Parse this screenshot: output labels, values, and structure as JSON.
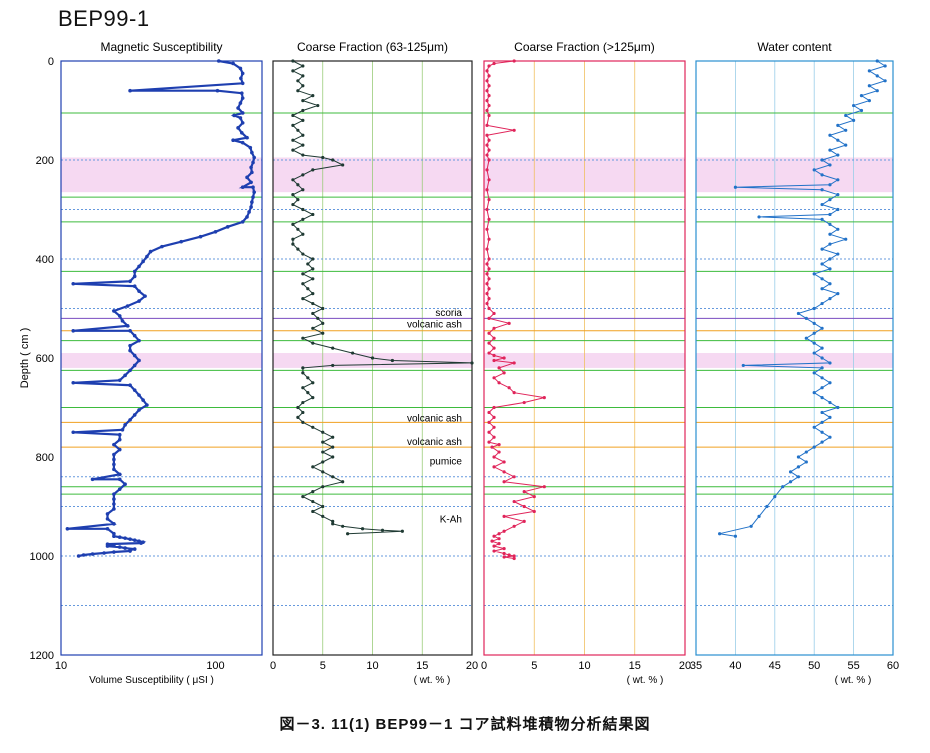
{
  "figure": {
    "title": "BEP99-1",
    "caption": "図－3. 11(1) BEP99－1 コア試料堆積物分析結果図",
    "depth_label": "Depth ( cm )"
  },
  "colors": {
    "magnetic": "#1e3fb0",
    "coarse_63": "#1f3a33",
    "coarse_125": "#e0245a",
    "water": "#2272c8",
    "frame_magnetic": "#1e3fb0",
    "frame_coarse_63": "#222222",
    "frame_coarse_125": "#e0245a",
    "frame_water": "#2a8fd0",
    "line_green": "#3dbb3d",
    "line_orange": "#f0a020",
    "line_blue_dotted": "#6699dd",
    "line_purple": "#7a4cc0",
    "band_pink": "#f6d9f2"
  },
  "chart_data": [
    {
      "type": "line",
      "title": "Magnetic Susceptibility",
      "xlabel": "Volume Susceptibility ( μSI )",
      "xscale": "log",
      "xlim": [
        10,
        200
      ],
      "xticks": [
        10,
        100
      ],
      "ylim": [
        1200,
        0
      ],
      "yticks": [
        0,
        200,
        400,
        600,
        800,
        1000,
        1200
      ],
      "series": [
        {
          "x": [
            105,
            130,
            145,
            150,
            146,
            150,
            103,
            148,
            150,
            145,
            140,
            150,
            145,
            150,
            140,
            148,
            160,
            150,
            168,
            172,
            178,
            175,
            170,
            172,
            160,
            170,
            175,
            178,
            175,
            172,
            170,
            165,
            160,
            150,
            120,
            100,
            80,
            60,
            45,
            38,
            36,
            34,
            32,
            30,
            30,
            28,
            30,
            32,
            35,
            32,
            27,
            22,
            24,
            25,
            27,
            28,
            30,
            32,
            28,
            28,
            30,
            32,
            30,
            28,
            26,
            24,
            28,
            30,
            32,
            34,
            36,
            32,
            30,
            28,
            26,
            25,
            24,
            24,
            22,
            24,
            22,
            22,
            22,
            22,
            24,
            24,
            26,
            24,
            22,
            22,
            22,
            22,
            20,
            20,
            22,
            20,
            22,
            22,
            24,
            26,
            28,
            30,
            32,
            34,
            33,
            20,
            22,
            20,
            24,
            26,
            30,
            28,
            28,
            22,
            19,
            16,
            14,
            13
          ],
          "y": [
            0,
            5,
            15,
            25,
            35,
            45,
            60,
            65,
            75,
            85,
            95,
            105,
            115,
            125,
            135,
            145,
            155,
            165,
            175,
            185,
            195,
            205,
            215,
            225,
            235,
            245,
            255,
            265,
            275,
            285,
            295,
            305,
            315,
            325,
            335,
            345,
            355,
            365,
            375,
            385,
            395,
            405,
            415,
            425,
            435,
            445,
            455,
            465,
            475,
            485,
            495,
            505,
            515,
            525,
            535,
            545,
            555,
            565,
            575,
            585,
            595,
            605,
            615,
            625,
            635,
            645,
            655,
            665,
            675,
            685,
            695,
            705,
            715,
            725,
            735,
            745,
            755,
            765,
            775,
            785,
            795,
            805,
            815,
            825,
            835,
            845,
            855,
            865,
            875,
            885,
            895,
            905,
            915,
            925,
            935,
            945,
            955,
            960,
            962,
            964,
            966,
            968,
            970,
            972,
            974,
            976,
            978,
            980,
            982,
            984,
            986,
            988,
            990,
            992,
            994,
            996,
            998,
            1000
          ]
        }
      ],
      "spikes": [
        {
          "y": 60,
          "x": 28
        },
        {
          "y": 110,
          "x": 132
        },
        {
          "y": 160,
          "x": 130
        },
        {
          "y": 255,
          "x": 150
        },
        {
          "y": 450,
          "x": 12
        },
        {
          "y": 545,
          "x": 12
        },
        {
          "y": 650,
          "x": 12
        },
        {
          "y": 750,
          "x": 12
        },
        {
          "y": 845,
          "x": 16
        },
        {
          "y": 945,
          "x": 11
        }
      ]
    },
    {
      "type": "line",
      "title": "Coarse Fraction (63-125μm)",
      "xlabel": "( wt. % )",
      "xlim": [
        0,
        20
      ],
      "xticks": [
        0,
        5,
        10,
        15,
        20
      ],
      "ylim": [
        1200,
        0
      ],
      "series": [
        {
          "x": [
            2,
            3,
            2,
            3,
            2.5,
            3,
            2.5,
            4,
            3,
            4.5,
            3,
            2,
            3,
            2,
            2.5,
            3,
            2,
            3,
            2,
            3,
            5,
            6,
            7,
            4,
            3,
            2,
            2.5,
            3,
            2,
            2.5,
            2,
            3,
            4,
            3,
            2,
            2.5,
            3,
            2,
            2,
            2.5,
            3,
            4,
            3.5,
            4,
            3,
            4,
            3,
            3.5,
            4,
            3,
            4,
            5,
            4,
            4.5,
            5,
            4,
            5,
            3,
            4,
            6,
            8,
            10,
            12,
            20,
            6,
            3,
            3,
            3.5,
            4,
            3,
            3.5,
            4,
            3,
            2.5,
            3,
            2.5,
            3,
            4,
            5,
            6,
            5,
            6,
            5,
            6,
            5,
            4,
            5,
            6,
            7,
            5,
            4,
            3,
            4,
            5,
            4,
            5,
            6,
            6,
            7,
            9,
            11,
            13,
            7.5
          ],
          "y": [
            0,
            10,
            20,
            30,
            40,
            50,
            60,
            70,
            80,
            90,
            100,
            110,
            120,
            130,
            140,
            150,
            160,
            170,
            180,
            190,
            195,
            200,
            210,
            220,
            230,
            240,
            250,
            260,
            270,
            280,
            290,
            300,
            310,
            320,
            330,
            340,
            350,
            360,
            370,
            380,
            390,
            400,
            410,
            420,
            430,
            440,
            450,
            460,
            470,
            480,
            490,
            500,
            510,
            520,
            530,
            540,
            550,
            560,
            570,
            580,
            590,
            600,
            605,
            610,
            615,
            620,
            630,
            640,
            650,
            660,
            670,
            680,
            690,
            700,
            710,
            720,
            730,
            740,
            750,
            760,
            770,
            780,
            790,
            800,
            810,
            820,
            830,
            840,
            850,
            860,
            870,
            880,
            890,
            900,
            910,
            920,
            930,
            935,
            940,
            945,
            948,
            950,
            955
          ]
        }
      ]
    },
    {
      "type": "line",
      "title": "Coarse Fraction (>125μm)",
      "xlabel": "( wt. % )",
      "xlim": [
        0,
        20
      ],
      "xticks": [
        0,
        5,
        10,
        15,
        20
      ],
      "ylim": [
        1200,
        0
      ],
      "series": [
        {
          "x": [
            3,
            1,
            0.5,
            0.3,
            0.5,
            0.3,
            0.5,
            0.3,
            0.5,
            0.3,
            0.5,
            0.3,
            0.5,
            0.3,
            3,
            0.3,
            0.5,
            0.3,
            0.5,
            0.3,
            0.5,
            0.3,
            0.5,
            0.3,
            0.5,
            0.3,
            0.5,
            0.3,
            0.5,
            0.3,
            0.5,
            0.3,
            0.5,
            0.3,
            0.5,
            0.3,
            0.5,
            0.3,
            0.5,
            0.3,
            0.5,
            1,
            0.5,
            2.5,
            1,
            0.5,
            1,
            0.5,
            1,
            0.5,
            1,
            2,
            1,
            3,
            1.5,
            2,
            1,
            1.5,
            2.5,
            3,
            6,
            4,
            1,
            0.5,
            1,
            0.5,
            1,
            0.5,
            1,
            0.5,
            1.5,
            0.8,
            1.5,
            1,
            2,
            1,
            2,
            3,
            2,
            6,
            4,
            5,
            3,
            4,
            5,
            2,
            4,
            3,
            2,
            1.5,
            1,
            1.5,
            0.8,
            1.5,
            1,
            2,
            1,
            2,
            2.5,
            3,
            2,
            3
          ],
          "y": [
            0,
            5,
            10,
            20,
            30,
            40,
            50,
            60,
            70,
            80,
            90,
            100,
            110,
            130,
            140,
            150,
            160,
            170,
            180,
            190,
            200,
            220,
            240,
            260,
            280,
            300,
            320,
            340,
            360,
            380,
            400,
            410,
            420,
            430,
            440,
            450,
            460,
            470,
            480,
            490,
            500,
            510,
            520,
            530,
            540,
            550,
            560,
            570,
            580,
            590,
            595,
            600,
            605,
            610,
            620,
            630,
            640,
            650,
            660,
            670,
            680,
            690,
            700,
            710,
            720,
            730,
            740,
            750,
            760,
            770,
            775,
            780,
            790,
            800,
            810,
            820,
            830,
            840,
            850,
            860,
            870,
            880,
            890,
            900,
            910,
            920,
            930,
            940,
            950,
            955,
            960,
            965,
            970,
            975,
            980,
            985,
            990,
            995,
            998,
            1000,
            1002,
            1005
          ]
        }
      ]
    },
    {
      "type": "line",
      "title": "Water content",
      "xlabel": "( wt. % )",
      "xlim": [
        35,
        60
      ],
      "xticks": [
        35,
        40,
        45,
        50,
        55,
        60
      ],
      "ylim": [
        1200,
        0
      ],
      "series": [
        {
          "x": [
            58,
            59,
            57,
            58,
            59,
            57,
            58,
            56,
            57,
            55,
            56,
            54,
            55,
            53,
            54,
            52,
            53,
            54,
            52,
            53,
            51,
            52,
            50,
            51,
            53,
            52,
            51,
            53,
            52,
            51,
            53,
            52,
            51,
            52,
            53,
            52,
            54,
            52,
            51,
            53,
            52,
            51,
            52,
            50,
            51,
            52,
            51,
            53,
            52,
            51,
            50,
            48,
            49,
            50,
            51,
            50,
            49,
            50,
            51,
            50,
            51,
            52,
            51,
            50,
            51,
            52,
            51,
            50,
            51,
            52,
            53,
            51,
            52,
            51,
            50,
            51,
            52,
            51,
            50,
            49,
            48,
            49,
            48,
            47,
            48,
            47,
            46,
            45,
            44,
            43,
            42,
            40
          ],
          "y": [
            0,
            10,
            20,
            30,
            40,
            50,
            60,
            70,
            80,
            90,
            100,
            110,
            120,
            130,
            140,
            150,
            160,
            170,
            180,
            190,
            200,
            210,
            220,
            230,
            240,
            250,
            260,
            270,
            280,
            290,
            300,
            310,
            320,
            330,
            340,
            350,
            360,
            370,
            380,
            390,
            400,
            410,
            420,
            430,
            440,
            450,
            460,
            470,
            480,
            490,
            500,
            510,
            520,
            530,
            540,
            550,
            560,
            570,
            580,
            590,
            600,
            610,
            620,
            630,
            640,
            650,
            660,
            670,
            680,
            690,
            700,
            710,
            720,
            730,
            740,
            750,
            760,
            770,
            780,
            790,
            800,
            810,
            820,
            830,
            840,
            850,
            860,
            880,
            900,
            920,
            940,
            960
          ]
        }
      ],
      "spikes": [
        {
          "y": 255,
          "x": 40
        },
        {
          "y": 315,
          "x": 43
        },
        {
          "y": 615,
          "x": 41
        },
        {
          "y": 955,
          "x": 38
        }
      ]
    }
  ],
  "horizons": [
    {
      "depth": 105,
      "kind": "green"
    },
    {
      "depth": 200,
      "kind": "blue_dotted"
    },
    {
      "depth": 275,
      "kind": "green"
    },
    {
      "depth": 300,
      "kind": "blue_dotted"
    },
    {
      "depth": 325,
      "kind": "green"
    },
    {
      "depth": 400,
      "kind": "blue_dotted"
    },
    {
      "depth": 425,
      "kind": "green"
    },
    {
      "depth": 500,
      "kind": "blue_dotted"
    },
    {
      "depth": 520,
      "kind": "purple"
    },
    {
      "depth": 545,
      "kind": "orange"
    },
    {
      "depth": 565,
      "kind": "green"
    },
    {
      "depth": 625,
      "kind": "green"
    },
    {
      "depth": 700,
      "kind": "green"
    },
    {
      "depth": 730,
      "kind": "orange"
    },
    {
      "depth": 780,
      "kind": "orange"
    },
    {
      "depth": 840,
      "kind": "blue_dotted"
    },
    {
      "depth": 860,
      "kind": "green"
    },
    {
      "depth": 875,
      "kind": "green"
    },
    {
      "depth": 900,
      "kind": "blue_dotted"
    },
    {
      "depth": 1000,
      "kind": "blue_dotted"
    },
    {
      "depth": 1100,
      "kind": "blue_dotted"
    }
  ],
  "pink_bands": [
    {
      "from": 195,
      "to": 265
    },
    {
      "from": 590,
      "to": 620
    }
  ],
  "annotations": [
    {
      "text": "scoria",
      "depth": 515
    },
    {
      "text": "volcanic ash",
      "depth": 538
    },
    {
      "text": "volcanic ash",
      "depth": 728
    },
    {
      "text": "volcanic ash",
      "depth": 776
    },
    {
      "text": "pumice",
      "depth": 815
    },
    {
      "text": "K-Ah",
      "depth": 932
    }
  ]
}
